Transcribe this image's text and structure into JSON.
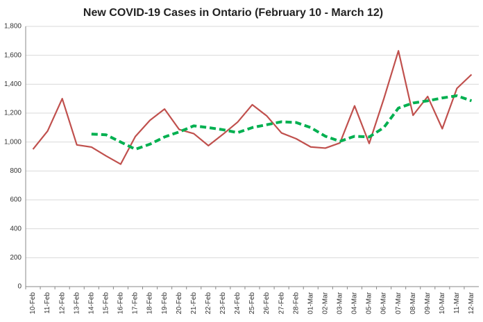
{
  "chart_data": {
    "type": "line",
    "title": "New COVID-19 Cases in Ontario (February 10 - March 12)",
    "categories": [
      "10-Feb",
      "11-Feb",
      "12-Feb",
      "13-Feb",
      "14-Feb",
      "15-Feb",
      "16-Feb",
      "17-Feb",
      "18-Feb",
      "19-Feb",
      "20-Feb",
      "21-Feb",
      "22-Feb",
      "23-Feb",
      "24-Feb",
      "25-Feb",
      "26-Feb",
      "27-Feb",
      "28-Feb",
      "01-Mar",
      "02-Mar",
      "03-Mar",
      "04-Mar",
      "05-Mar",
      "06-Mar",
      "07-Mar",
      "08-Mar",
      "09-Mar",
      "10-Mar",
      "11-Mar",
      "12-Mar"
    ],
    "series": [
      {
        "color": "#c0504d",
        "dashed": false,
        "values": [
          950,
          1076,
          1300,
          980,
          965,
          904,
          847,
          1038,
          1150,
          1228,
          1087,
          1058,
          975,
          1054,
          1138,
          1258,
          1180,
          1063,
          1023,
          966,
          958,
          994,
          1250,
          990,
          1299,
          1631,
          1185,
          1315,
          1092,
          1371,
          1467
        ]
      },
      {
        "color": "#00b050",
        "dashed": true,
        "values": [
          null,
          null,
          null,
          null,
          1055,
          1050,
          1000,
          950,
          985,
          1035,
          1070,
          1112,
          1100,
          1085,
          1065,
          1100,
          1120,
          1140,
          1135,
          1100,
          1040,
          1005,
          1040,
          1035,
          1100,
          1235,
          1270,
          1285,
          1305,
          1320,
          1285
        ]
      }
    ],
    "ylim": [
      0,
      1800
    ],
    "yticks": [
      0,
      200,
      400,
      600,
      800,
      {
        "value": 1000,
        "label": "1,000"
      },
      {
        "value": 1200,
        "label": "1,200"
      },
      {
        "value": 1400,
        "label": "1,400"
      },
      {
        "value": 1600,
        "label": "1,600"
      },
      {
        "value": 1800,
        "label": "1,800"
      }
    ],
    "grid": true
  }
}
